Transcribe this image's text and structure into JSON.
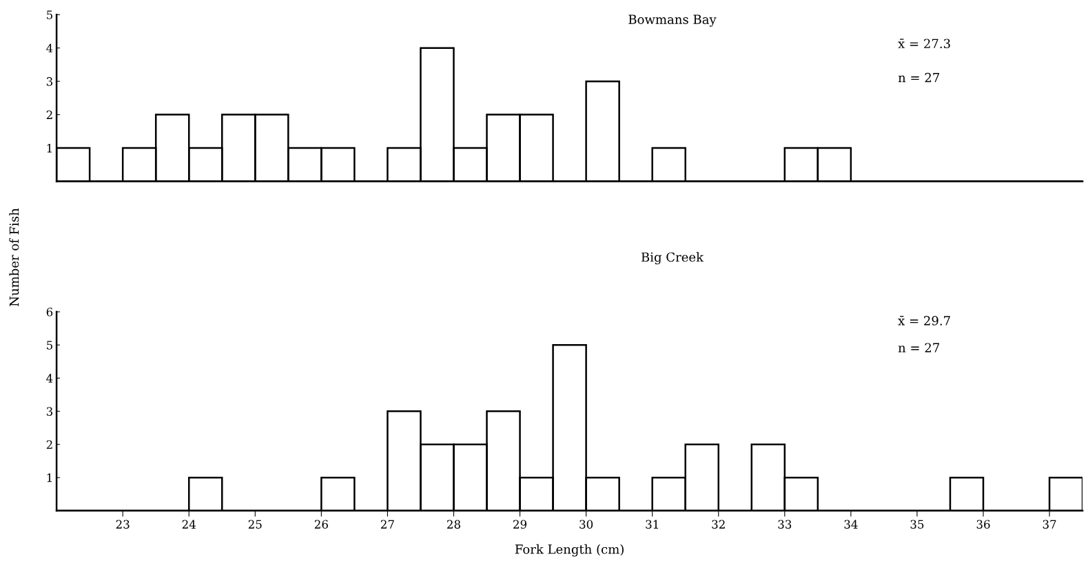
{
  "chart_data": [
    {
      "type": "histogram",
      "title": "Bowmans Bay",
      "ylabel": "Number of Fish",
      "bins": [
        22,
        22.5,
        23,
        23.5,
        24,
        24.5,
        25,
        25.5,
        26,
        26.5,
        27,
        27.5,
        28,
        28.5,
        29,
        29.5,
        30,
        30.5,
        31,
        31.5,
        32,
        32.5,
        33,
        33.5,
        34,
        34.5,
        35,
        35.5,
        36,
        36.5,
        37,
        37.5
      ],
      "values": [
        1,
        0,
        1,
        2,
        1,
        2,
        2,
        1,
        1,
        0,
        1,
        4,
        1,
        2,
        2,
        0,
        3,
        0,
        1,
        0,
        0,
        0,
        1,
        1,
        0,
        0,
        0,
        0,
        0,
        0,
        0
      ],
      "color": "#000000",
      "xlim": [
        22,
        37.5
      ],
      "ylim": [
        0,
        5
      ],
      "yticks": [
        1,
        2,
        3,
        4,
        5
      ],
      "xticks": [
        23,
        24,
        25,
        26,
        27,
        28,
        29,
        30,
        31,
        32,
        33,
        34,
        35,
        36,
        37
      ],
      "tick_labels": "y",
      "annotations": [
        "x̄ = 27.3",
        "n = 27"
      ]
    },
    {
      "type": "histogram",
      "title": "Big Creek",
      "xlabel": "Fork Length (cm)",
      "bins": [
        22,
        22.5,
        23,
        23.5,
        24,
        24.5,
        25,
        25.5,
        26,
        26.5,
        27,
        27.5,
        28,
        28.5,
        29,
        29.5,
        30,
        30.5,
        31,
        31.5,
        32,
        32.5,
        33,
        33.5,
        34,
        34.5,
        35,
        35.5,
        36,
        36.5,
        37,
        37.5
      ],
      "values": [
        0,
        0,
        0,
        0,
        1,
        0,
        0,
        0,
        1,
        0,
        3,
        2,
        2,
        3,
        1,
        5,
        1,
        0,
        1,
        2,
        0,
        2,
        1,
        0,
        0,
        0,
        0,
        1,
        0,
        0,
        1
      ],
      "color": "#000000",
      "xlim": [
        22,
        37.5
      ],
      "ylim": [
        0,
        6
      ],
      "yticks": [
        1,
        2,
        3,
        4,
        5,
        6
      ],
      "xticks": [
        23,
        24,
        25,
        26,
        27,
        28,
        29,
        30,
        31,
        32,
        33,
        34,
        35,
        36,
        37
      ],
      "annotations": [
        "x̄ = 29.7",
        "n = 27"
      ]
    }
  ]
}
